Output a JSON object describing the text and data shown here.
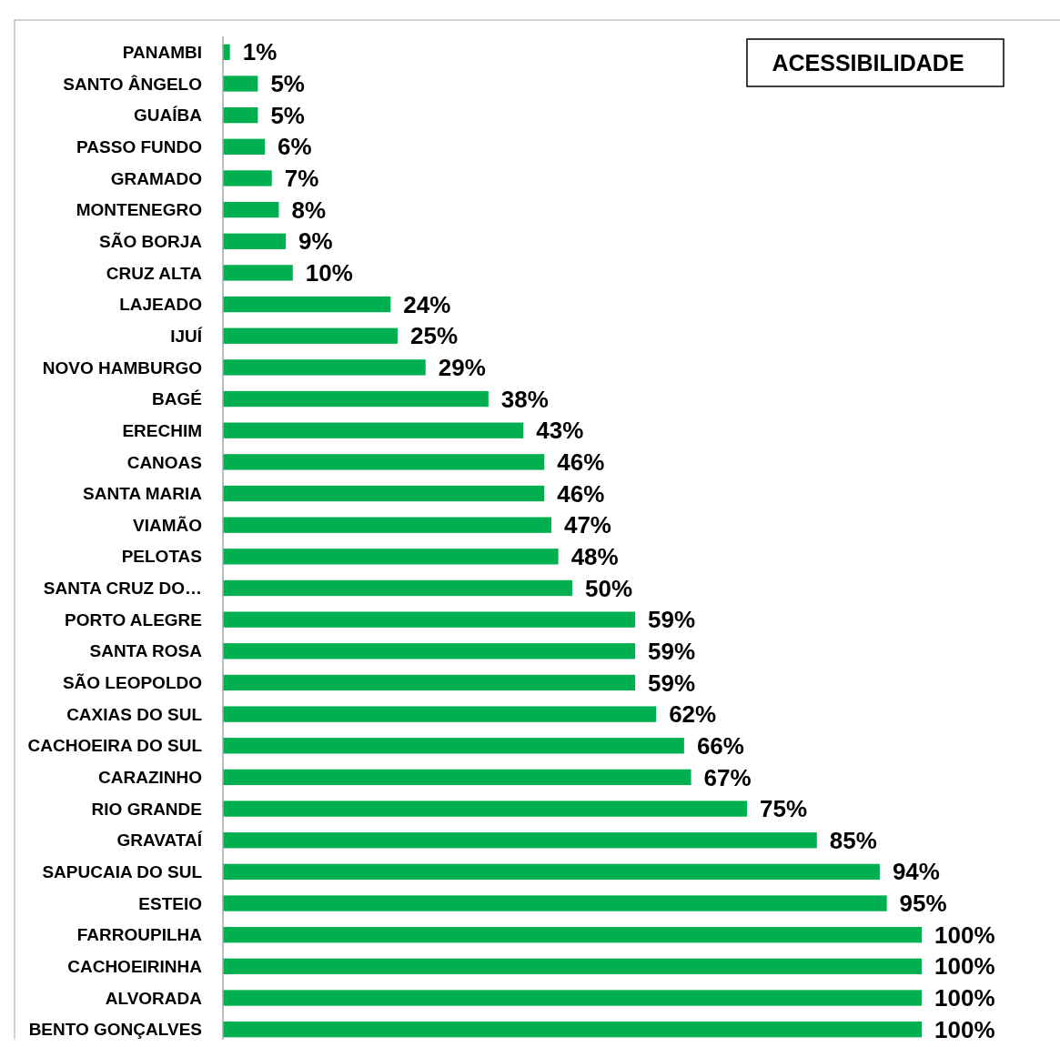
{
  "chart_data": {
    "type": "bar",
    "orientation": "horizontal",
    "title": "ACESSIBILIDADE",
    "color": "#00b050",
    "xlim": [
      0,
      100
    ],
    "tick_labels": "y",
    "categories": [
      "PANAMBI",
      "SANTO ÂNGELO",
      "GUAÍBA",
      "PASSO FUNDO",
      "GRAMADO",
      "MONTENEGRO",
      "SÃO BORJA",
      "CRUZ ALTA",
      "LAJEADO",
      "IJUÍ",
      "NOVO HAMBURGO",
      "BAGÉ",
      "ERECHIM",
      "CANOAS",
      "SANTA MARIA",
      "VIAMÃO",
      "PELOTAS",
      "SANTA CRUZ DO…",
      "PORTO ALEGRE",
      "SANTA ROSA",
      "SÃO LEOPOLDO",
      "CAXIAS DO SUL",
      "CACHOEIRA DO SUL",
      "CARAZINHO",
      "RIO GRANDE",
      "GRAVATAÍ",
      "SAPUCAIA DO SUL",
      "ESTEIO",
      "FARROUPILHA",
      "CACHOEIRINHA",
      "ALVORADA",
      "BENTO GONÇALVES"
    ],
    "values": [
      1,
      5,
      5,
      6,
      7,
      8,
      9,
      10,
      24,
      25,
      29,
      38,
      43,
      46,
      46,
      47,
      48,
      50,
      59,
      59,
      59,
      62,
      66,
      67,
      75,
      85,
      94,
      95,
      100,
      100,
      100,
      100
    ],
    "value_labels": [
      "1%",
      "5%",
      "5%",
      "6%",
      "7%",
      "8%",
      "9%",
      "10%",
      "24%",
      "25%",
      "29%",
      "38%",
      "43%",
      "46%",
      "46%",
      "47%",
      "48%",
      "50%",
      "59%",
      "59%",
      "59%",
      "62%",
      "66%",
      "67%",
      "75%",
      "85%",
      "94%",
      "95%",
      "100%",
      "100%",
      "100%",
      "100%"
    ]
  }
}
